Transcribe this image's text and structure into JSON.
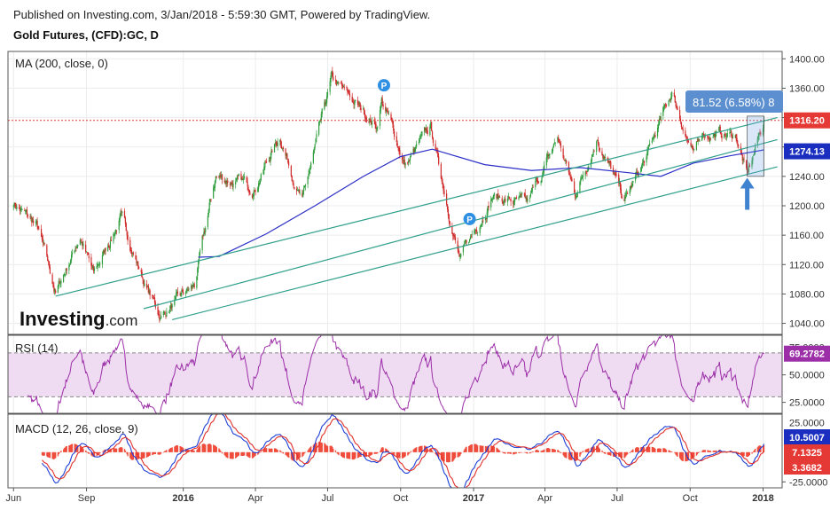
{
  "header": {
    "published": "Published on Investing.com, 3/Jan/2018 - 5:59:30 GMT, Powered by TradingView.",
    "symbol": "Gold Futures, (CFD):GC, D"
  },
  "logo": {
    "brand": "Investing",
    "suffix": ".com"
  },
  "colors": {
    "up": "#2e9d3c",
    "down": "#d02828",
    "ma": "#2b2fc7",
    "channel": "#2fa08a",
    "rsi": "#9c2fa8",
    "rsi_band": "#efdcf2",
    "macd": "#1e3fd6",
    "signal": "#e0302a",
    "hist": "#ef4c3c",
    "price_tag": "#e53935",
    "ma_tag": "#1a2fc0",
    "pill": "#5b8fcf",
    "arrow": "#3f83d0",
    "grid": "#ececec",
    "border": "#555555"
  },
  "chart_data": {
    "type": "candlestick",
    "x_axis_labels": [
      "Jun",
      "Sep",
      "2016",
      "Apr",
      "Jul",
      "Oct",
      "2017",
      "Apr",
      "Jul",
      "Oct",
      "2018"
    ],
    "price_panel": {
      "label": "MA (200, close, 0)",
      "y_ticks": [
        1040,
        1080,
        1120,
        1160,
        1200,
        1240,
        1280,
        1320,
        1360,
        1400
      ],
      "ylim": [
        1025,
        1410
      ],
      "anchors": [
        {
          "date": "2015-06-01",
          "close": 1205
        },
        {
          "date": "2015-07-01",
          "close": 1170
        },
        {
          "date": "2015-07-24",
          "close": 1080
        },
        {
          "date": "2015-08-24",
          "close": 1160
        },
        {
          "date": "2015-09-10",
          "close": 1105
        },
        {
          "date": "2015-10-14",
          "close": 1185
        },
        {
          "date": "2015-11-15",
          "close": 1090
        },
        {
          "date": "2015-12-03",
          "close": 1050
        },
        {
          "date": "2016-01-15",
          "close": 1090
        },
        {
          "date": "2016-02-11",
          "close": 1240
        },
        {
          "date": "2016-03-30",
          "close": 1225
        },
        {
          "date": "2016-05-02",
          "close": 1295
        },
        {
          "date": "2016-05-30",
          "close": 1205
        },
        {
          "date": "2016-07-06",
          "close": 1370
        },
        {
          "date": "2016-09-01",
          "close": 1310
        },
        {
          "date": "2016-09-07",
          "close": 1345
        },
        {
          "date": "2016-10-07",
          "close": 1255
        },
        {
          "date": "2016-11-08",
          "close": 1305
        },
        {
          "date": "2016-12-15",
          "close": 1125
        },
        {
          "date": "2017-01-24",
          "close": 1215
        },
        {
          "date": "2017-03-10",
          "close": 1200
        },
        {
          "date": "2017-04-17",
          "close": 1292
        },
        {
          "date": "2017-05-09",
          "close": 1215
        },
        {
          "date": "2017-06-06",
          "close": 1295
        },
        {
          "date": "2017-07-10",
          "close": 1205
        },
        {
          "date": "2017-08-07",
          "close": 1265
        },
        {
          "date": "2017-09-08",
          "close": 1355
        },
        {
          "date": "2017-10-06",
          "close": 1265
        },
        {
          "date": "2017-10-16",
          "close": 1300
        },
        {
          "date": "2017-11-28",
          "close": 1295
        },
        {
          "date": "2017-12-12",
          "close": 1240
        },
        {
          "date": "2018-01-02",
          "close": 1316
        }
      ],
      "ma200": [
        {
          "date": "2016-01-20",
          "close": 1130
        },
        {
          "date": "2016-02-15",
          "close": 1131
        },
        {
          "date": "2016-04-15",
          "close": 1162
        },
        {
          "date": "2016-06-15",
          "close": 1200
        },
        {
          "date": "2016-08-15",
          "close": 1240
        },
        {
          "date": "2016-10-01",
          "close": 1267
        },
        {
          "date": "2016-11-10",
          "close": 1277
        },
        {
          "date": "2017-01-15",
          "close": 1256
        },
        {
          "date": "2017-03-15",
          "close": 1248
        },
        {
          "date": "2017-05-15",
          "close": 1252
        },
        {
          "date": "2017-07-15",
          "close": 1245
        },
        {
          "date": "2017-08-25",
          "close": 1240
        },
        {
          "date": "2017-10-05",
          "close": 1258
        },
        {
          "date": "2017-11-20",
          "close": 1268
        },
        {
          "date": "2018-01-02",
          "close": 1276
        }
      ],
      "channel": [
        {
          "from": {
            "date": "2015-07-24",
            "close": 1077
          },
          "to": {
            "date": "2018-01-19",
            "close": 1320
          }
        },
        {
          "from": {
            "date": "2015-11-12",
            "close": 1060
          },
          "to": {
            "date": "2018-01-19",
            "close": 1290
          }
        },
        {
          "from": {
            "date": "2015-12-18",
            "close": 1045
          },
          "to": {
            "date": "2018-01-19",
            "close": 1253
          }
        }
      ],
      "last_price": 1316.2,
      "price_tag": "1316.20",
      "ma_value": 1274.13,
      "ma_tag": "1274.13",
      "measure_label": "81.52 (6.58%) 8",
      "measure_range": {
        "from": {
          "date": "2017-12-12",
          "close": 1240
        },
        "to": {
          "date": "2018-01-02",
          "close": 1322
        }
      },
      "pivot_markers": [
        {
          "date": "2016-09-10",
          "close": 1364,
          "label": "P"
        },
        {
          "date": "2016-12-27",
          "close": 1182,
          "label": "P"
        }
      ],
      "arrow": {
        "date": "2017-12-12",
        "close_tip": 1238,
        "close_tail": 1197
      }
    },
    "rsi_panel": {
      "label": "RSI (14)",
      "period": 14,
      "y_ticks": [
        25,
        50
      ],
      "top_tick": 75,
      "ylim": [
        15,
        86
      ],
      "band": [
        30,
        70
      ],
      "last_value": 69.2782,
      "value_tag": "69.2782"
    },
    "macd_panel": {
      "label": "MACD (12, 26, close, 9)",
      "y_ticks": [
        -25
      ],
      "top_tick": 25,
      "ylim": [
        -30,
        32
      ],
      "macd_value": 10.5007,
      "signal_value": 7.1325,
      "hist_value": 3.3682,
      "macd_tag": "10.5007",
      "signal_tag": "7.1325",
      "hist_tag": "3.3682",
      "tick_minus": "-25.0000"
    }
  }
}
